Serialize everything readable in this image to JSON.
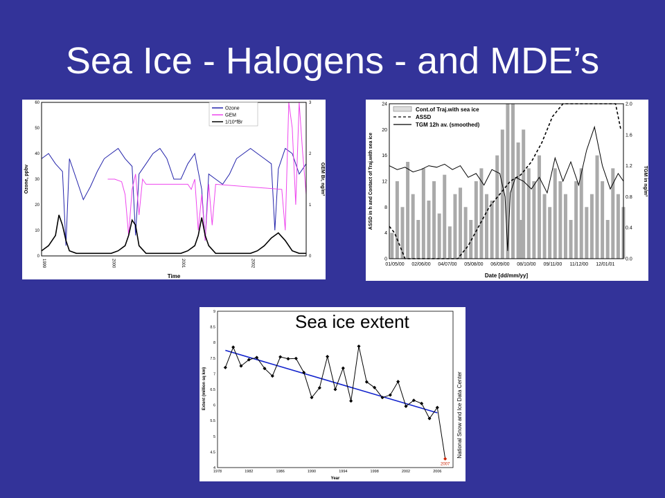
{
  "slide": {
    "title": "Sea Ice - Halogens - and MDE’s"
  },
  "chart_data": [
    {
      "type": "line",
      "xlabel": "Time",
      "ylabel": "Ozone, ppbv",
      "y2label": "GEM Br, ng/m³",
      "ylim": [
        0,
        60
      ],
      "y2lim": [
        0,
        3
      ],
      "xlim": [
        1999.0,
        2002.8
      ],
      "x_ticks": [
        "1999",
        "2000",
        "2001",
        "2002"
      ],
      "y_ticks": [
        "0",
        "10",
        "20",
        "30",
        "40",
        "50",
        "60"
      ],
      "y2_ticks": [
        "0",
        "1",
        "2",
        "3"
      ],
      "legend_position": "top-right",
      "colors": {
        "Ozone": "#2222aa",
        "GEM": "#ee44ee",
        "1/10*fBr": "#000000"
      },
      "series": [
        {
          "name": "Ozone",
          "x": [
            1999.0,
            1999.1,
            1999.2,
            1999.3,
            1999.35,
            1999.4,
            1999.5,
            1999.6,
            1999.7,
            1999.8,
            1999.9,
            2000.0,
            2000.1,
            2000.2,
            2000.3,
            2000.35,
            2000.4,
            2000.5,
            2000.6,
            2000.7,
            2000.8,
            2000.9,
            2001.0,
            2001.1,
            2001.2,
            2001.3,
            2001.35,
            2001.4,
            2001.5,
            2001.6,
            2001.7,
            2001.8,
            2001.9,
            2002.0,
            2002.1,
            2002.2,
            2002.3,
            2002.35,
            2002.4,
            2002.5,
            2002.6,
            2002.7,
            2002.8
          ],
          "values": [
            38,
            40,
            36,
            33,
            4,
            38,
            30,
            22,
            27,
            33,
            38,
            40,
            42,
            38,
            35,
            8,
            32,
            36,
            40,
            42,
            38,
            30,
            30,
            36,
            40,
            26,
            6,
            32,
            30,
            28,
            32,
            38,
            40,
            42,
            40,
            38,
            36,
            10,
            34,
            42,
            40,
            32,
            36
          ]
        },
        {
          "name": "GEM",
          "x": [
            1999.95,
            2000.05,
            2000.15,
            2000.2,
            2000.25,
            2000.3,
            2000.35,
            2000.4,
            2000.45,
            2000.5,
            2001.1,
            2001.15,
            2001.2,
            2001.25,
            2001.3,
            2001.35,
            2001.4,
            2001.45,
            2001.5,
            2002.45,
            2002.5,
            2002.55,
            2002.6,
            2002.65,
            2002.7,
            2002.75,
            2002.8
          ],
          "values": [
            1.5,
            1.5,
            1.45,
            1.2,
            0.4,
            1.3,
            1.6,
            0.8,
            1.5,
            1.4,
            1.4,
            1.3,
            1.5,
            0.5,
            1.2,
            0.3,
            1.4,
            0.6,
            1.4,
            1.3,
            0.5,
            3.0,
            2.5,
            1.0,
            3.0,
            2.0,
            1.2
          ]
        },
        {
          "name": "1/10*fBr",
          "x": [
            1999.0,
            1999.1,
            1999.2,
            1999.25,
            1999.3,
            1999.35,
            1999.4,
            1999.5,
            1999.6,
            1999.8,
            2000.0,
            2000.1,
            2000.2,
            2000.25,
            2000.3,
            2000.35,
            2000.4,
            2000.5,
            2000.7,
            2000.9,
            2001.0,
            2001.1,
            2001.2,
            2001.25,
            2001.3,
            2001.35,
            2001.4,
            2001.5,
            2001.7,
            2001.9,
            2002.0,
            2002.1,
            2002.2,
            2002.3,
            2002.35,
            2002.4,
            2002.5,
            2002.6,
            2002.7,
            2002.8
          ],
          "values": [
            0.1,
            0.2,
            0.4,
            0.8,
            0.6,
            0.3,
            0.1,
            0.05,
            0.05,
            0.05,
            0.05,
            0.1,
            0.2,
            0.4,
            0.7,
            0.6,
            0.2,
            0.05,
            0.05,
            0.05,
            0.05,
            0.1,
            0.2,
            0.4,
            0.75,
            0.4,
            0.2,
            0.05,
            0.05,
            0.05,
            0.05,
            0.1,
            0.2,
            0.35,
            0.4,
            0.45,
            0.3,
            0.1,
            0.05,
            0.05
          ]
        }
      ]
    },
    {
      "type": "line",
      "xlabel": "Date [dd/mm/yy]",
      "ylabel": "ASSD in h and Contact of Traj.with sea ice",
      "y2label": "TGM in ng/m³",
      "ylim": [
        0,
        24
      ],
      "y2lim": [
        0.0,
        2.0
      ],
      "x_ticks": [
        "01/05/00",
        "02/06/00",
        "04/07/00",
        "05/08/00",
        "06/09/00",
        "08/10/00",
        "09/11/00",
        "11/12/00",
        "12/01/01"
      ],
      "y_ticks": [
        "0",
        "4",
        "8",
        "12",
        "16",
        "20",
        "24"
      ],
      "y2_ticks": [
        "0.0",
        "0.4",
        "0.8",
        "1.2",
        "1.6",
        "2.0"
      ],
      "legend_position": "top-left",
      "series": [
        {
          "name": "Cont.of Traj.with sea ice",
          "x": [
            0.1,
            0.3,
            0.5,
            0.7,
            0.9,
            1.1,
            1.3,
            1.5,
            1.7,
            1.9,
            2.1,
            2.3,
            2.5,
            2.7,
            2.9,
            3.1,
            3.3,
            3.5,
            3.7,
            3.9,
            4.1,
            4.3,
            4.5,
            4.7,
            4.9,
            5.0,
            5.1,
            5.3,
            5.5,
            5.7,
            5.9,
            6.1,
            6.3,
            6.5,
            6.7,
            6.9,
            7.1,
            7.3,
            7.5,
            7.7,
            7.9,
            8.1,
            8.3,
            8.5,
            8.7,
            8.9
          ],
          "values": [
            4,
            12,
            8,
            15,
            10,
            6,
            14,
            9,
            12,
            7,
            13,
            5,
            10,
            11,
            8,
            6,
            12,
            14,
            10,
            9,
            16,
            20,
            24,
            24,
            18,
            6,
            20,
            14,
            12,
            16,
            10,
            8,
            14,
            12,
            10,
            6,
            12,
            14,
            8,
            10,
            16,
            12,
            6,
            14,
            10,
            8
          ]
        },
        {
          "name": "ASSD",
          "x": [
            0.0,
            0.2,
            0.4,
            0.6,
            1.0,
            1.4,
            1.8,
            2.2,
            2.6,
            3.0,
            3.4,
            3.8,
            4.2,
            4.6,
            5.0,
            5.4,
            5.8,
            6.2,
            6.6,
            7.0,
            7.4,
            7.8,
            8.2,
            8.6,
            8.8
          ],
          "values": [
            5,
            4,
            2,
            0,
            0,
            0,
            0,
            0,
            0,
            2,
            5,
            8,
            10,
            12,
            13,
            15,
            18,
            22,
            24,
            24,
            24,
            24,
            24,
            24,
            20
          ]
        },
        {
          "name": "TGM 12h av. (smoothed)",
          "x": [
            0.0,
            0.3,
            0.6,
            0.9,
            1.2,
            1.5,
            1.8,
            2.1,
            2.4,
            2.7,
            3.0,
            3.3,
            3.6,
            3.9,
            4.2,
            4.4,
            4.5,
            4.6,
            4.8,
            5.1,
            5.4,
            5.7,
            6.0,
            6.3,
            6.6,
            6.9,
            7.2,
            7.5,
            7.8,
            8.1,
            8.4,
            8.7,
            8.9
          ],
          "values": [
            1.2,
            1.15,
            1.18,
            1.12,
            1.15,
            1.2,
            1.18,
            1.22,
            1.15,
            1.2,
            1.05,
            1.1,
            0.95,
            1.15,
            1.1,
            0.8,
            0.1,
            0.85,
            1.05,
            1.0,
            0.9,
            1.05,
            0.85,
            1.3,
            1.0,
            1.25,
            0.95,
            1.4,
            1.7,
            1.2,
            0.9,
            1.1,
            1.0
          ]
        }
      ]
    },
    {
      "type": "line",
      "title": "Sea ice extent",
      "xlabel": "Year",
      "ylabel": "Extent (million sq km)",
      "xlim": [
        1978,
        2008
      ],
      "ylim": [
        4,
        9
      ],
      "x_ticks": [
        "1978",
        "1982",
        "1986",
        "1990",
        "1994",
        "1998",
        "2002",
        "2006"
      ],
      "y_ticks": [
        "4",
        "4.5",
        "5",
        "5.5",
        "6",
        "6.5",
        "7",
        "7.5",
        "8",
        "8.5",
        "9"
      ],
      "credit": "National Snow and Ice Data Center",
      "highlight_label": "2007",
      "highlight_color": "#cc2200",
      "trend_color": "#1122cc",
      "series": [
        {
          "name": "extent",
          "x": [
            1979,
            1980,
            1981,
            1982,
            1983,
            1984,
            1985,
            1986,
            1987,
            1988,
            1989,
            1990,
            1991,
            1992,
            1993,
            1994,
            1995,
            1996,
            1997,
            1998,
            1999,
            2000,
            2001,
            2002,
            2003,
            2004,
            2005,
            2006,
            2007
          ],
          "values": [
            7.2,
            7.85,
            7.25,
            7.45,
            7.52,
            7.17,
            6.93,
            7.54,
            7.48,
            7.49,
            7.04,
            6.24,
            6.55,
            7.55,
            6.5,
            7.18,
            6.13,
            7.88,
            6.74,
            6.56,
            6.24,
            6.32,
            6.75,
            5.96,
            6.15,
            6.05,
            5.57,
            5.92,
            4.28
          ]
        },
        {
          "name": "trend",
          "x": [
            1979,
            2006
          ],
          "values": [
            7.75,
            5.75
          ]
        }
      ]
    }
  ]
}
